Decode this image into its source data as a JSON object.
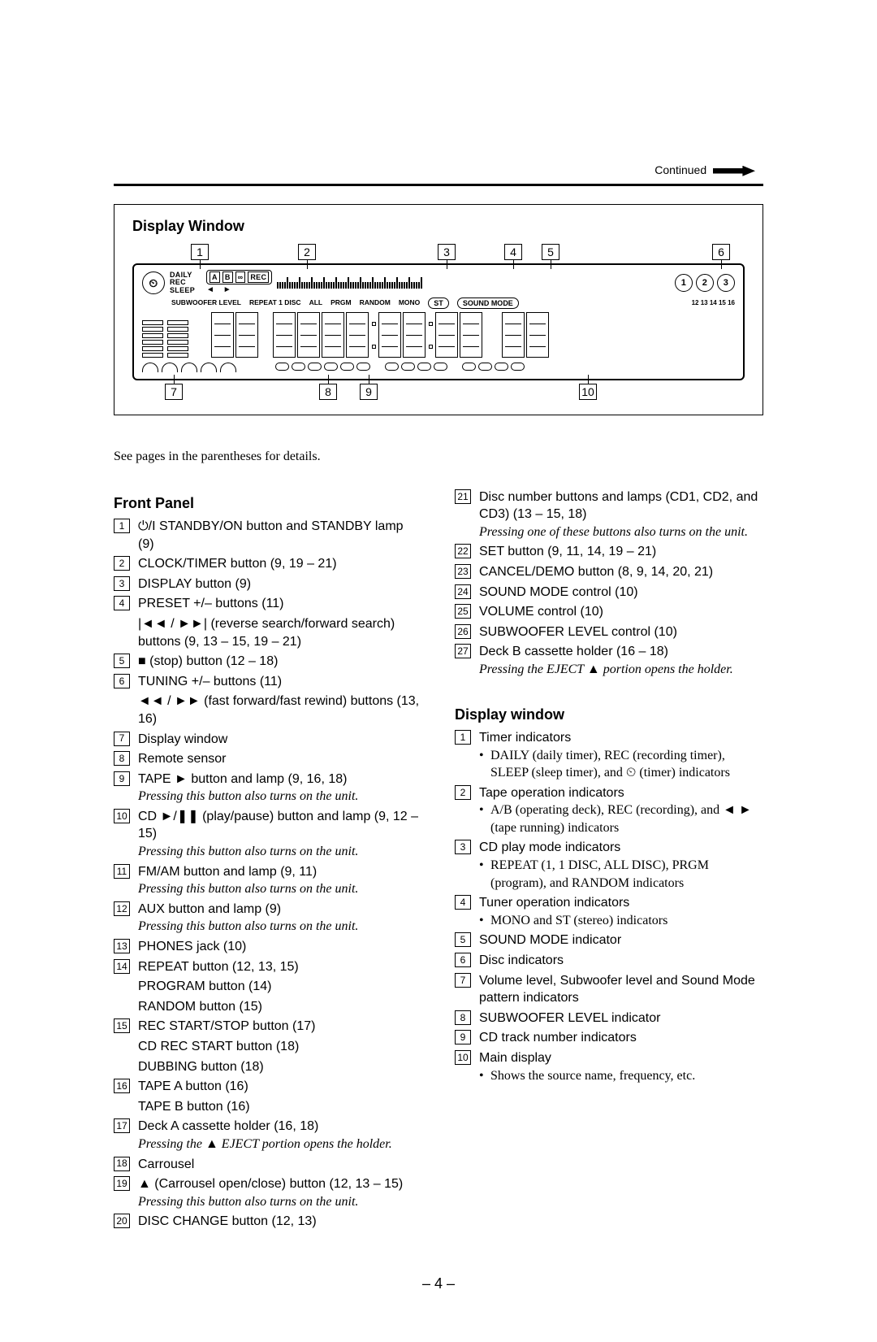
{
  "header": {
    "continued": "Continued"
  },
  "display_window": {
    "title": "Display Window",
    "top_callouts": [
      "1",
      "2",
      "3",
      "4",
      "5",
      "6"
    ],
    "bottom_callouts": [
      "7",
      "8",
      "9",
      "10"
    ],
    "timer_labels": [
      "DAILY",
      "REC",
      "SLEEP"
    ],
    "tape_box": [
      "A",
      "B",
      "∞",
      "REC"
    ],
    "tape_arrows": "◄ ►",
    "sub_label": "SUBWOOFER LEVEL",
    "repeat_labels": "REPEAT 1 DISC",
    "all_label": "ALL",
    "prgm_label": "PRGM",
    "random_label": "RANDOM",
    "mono_label": "MONO",
    "st_label": "ST",
    "soundmode_label": "SOUND MODE",
    "discs": [
      "1",
      "2",
      "3"
    ]
  },
  "intro": "See pages in the parentheses for details.",
  "front_panel": {
    "heading": "Front Panel",
    "items": [
      {
        "n": "1",
        "text": "⏻/I STANDBY/ON button and STANDBY lamp (9)"
      },
      {
        "n": "2",
        "text": "CLOCK/TIMER button (9, 19 – 21)"
      },
      {
        "n": "3",
        "text": "DISPLAY button (9)"
      },
      {
        "n": "4",
        "text": "PRESET +/– buttons (11)"
      },
      {
        "n": "",
        "text": "|◄◄ / ►►| (reverse search/forward search) buttons (9, 13 – 15, 19 – 21)"
      },
      {
        "n": "5",
        "text": "■ (stop) button (12 – 18)"
      },
      {
        "n": "6",
        "text": "TUNING +/– buttons (11)"
      },
      {
        "n": "",
        "text": "◄◄ / ►► (fast forward/fast rewind) buttons (13, 16)"
      },
      {
        "n": "7",
        "text": "Display window"
      },
      {
        "n": "8",
        "text": "Remote sensor"
      },
      {
        "n": "9",
        "text": "TAPE ► button and lamp (9, 16, 18)",
        "note": "Pressing this button also turns on the unit."
      },
      {
        "n": "10",
        "text": "CD ►/❚❚ (play/pause) button and lamp (9, 12 – 15)",
        "note": "Pressing this button also turns on the unit."
      },
      {
        "n": "11",
        "text": "FM/AM button and lamp (9, 11)",
        "note": "Pressing this button also turns on the unit."
      },
      {
        "n": "12",
        "text": "AUX button and lamp (9)",
        "note": "Pressing this button also turns on the unit."
      },
      {
        "n": "13",
        "text": "PHONES jack (10)"
      },
      {
        "n": "14",
        "text": "REPEAT button (12, 13, 15)"
      },
      {
        "n": "",
        "text": "PROGRAM button (14)"
      },
      {
        "n": "",
        "text": "RANDOM button (15)"
      },
      {
        "n": "15",
        "text": "REC START/STOP button (17)"
      },
      {
        "n": "",
        "text": "CD REC START button (18)"
      },
      {
        "n": "",
        "text": "DUBBING button (18)"
      },
      {
        "n": "16",
        "text": "TAPE A button (16)"
      },
      {
        "n": "",
        "text": "TAPE B button (16)"
      },
      {
        "n": "17",
        "text": "Deck A cassette holder (16, 18)",
        "note": "Pressing the ▲ EJECT portion opens the holder."
      },
      {
        "n": "18",
        "text": "Carrousel"
      },
      {
        "n": "19",
        "text": "▲ (Carrousel open/close) button (12, 13 – 15)",
        "note": "Pressing this button also turns on the unit."
      },
      {
        "n": "20",
        "text": "DISC CHANGE button (12, 13)"
      }
    ]
  },
  "right_top": [
    {
      "n": "21",
      "text": "Disc number buttons and lamps (CD1, CD2, and CD3) (13 – 15, 18)",
      "note": "Pressing one of these buttons also turns on the unit."
    },
    {
      "n": "22",
      "text": "SET button (9, 11, 14, 19 – 21)"
    },
    {
      "n": "23",
      "text": "CANCEL/DEMO button (8, 9, 14, 20, 21)"
    },
    {
      "n": "24",
      "text": "SOUND MODE control (10)"
    },
    {
      "n": "25",
      "text": "VOLUME control (10)"
    },
    {
      "n": "26",
      "text": "SUBWOOFER LEVEL control (10)"
    },
    {
      "n": "27",
      "text": "Deck B cassette holder (16 – 18)",
      "note": "Pressing the EJECT ▲ portion opens the holder."
    }
  ],
  "display_section": {
    "heading": "Display window",
    "items": [
      {
        "n": "1",
        "text": "Timer indicators",
        "bullets": [
          "DAILY (daily timer), REC (recording timer), SLEEP (sleep timer), and ⏲ (timer) indicators"
        ]
      },
      {
        "n": "2",
        "text": "Tape operation indicators",
        "bullets": [
          "A/B (operating deck), REC (recording), and ◄ ► (tape running) indicators"
        ]
      },
      {
        "n": "3",
        "text": "CD play mode indicators",
        "bullets": [
          "REPEAT (1, 1 DISC, ALL DISC), PRGM (program), and RANDOM indicators"
        ]
      },
      {
        "n": "4",
        "text": "Tuner operation indicators",
        "bullets": [
          "MONO and ST (stereo) indicators"
        ]
      },
      {
        "n": "5",
        "text": "SOUND MODE indicator"
      },
      {
        "n": "6",
        "text": "Disc indicators"
      },
      {
        "n": "7",
        "text": "Volume level, Subwoofer level and Sound Mode pattern indicators"
      },
      {
        "n": "8",
        "text": "SUBWOOFER LEVEL indicator"
      },
      {
        "n": "9",
        "text": "CD track number indicators"
      },
      {
        "n": "10",
        "text": "Main display",
        "bullets": [
          "Shows the source name, frequency, etc."
        ]
      }
    ]
  },
  "page_number": "– 4 –"
}
